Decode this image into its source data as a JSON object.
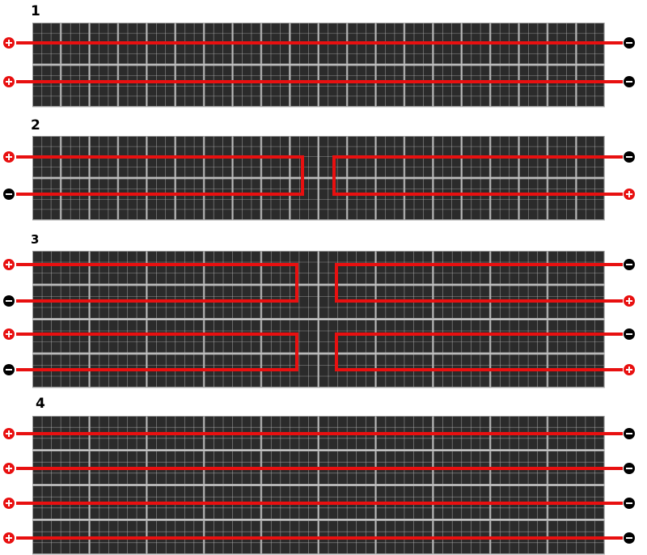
{
  "colors": {
    "wire": "#e81010",
    "module": "#2b2b2b",
    "grid": "#bdbdbd",
    "positive": "#e81010",
    "negative": "#000000"
  },
  "icons": {
    "positive": "circled-plus-icon",
    "negative": "circled-minus-icon"
  },
  "panels": [
    {
      "label": "1",
      "rows": 2,
      "modules_per_row": 20,
      "strings": [
        {
          "type": "straight",
          "left": "+",
          "right": "-"
        },
        {
          "type": "straight",
          "left": "+",
          "right": "-"
        }
      ]
    },
    {
      "label": "2",
      "rows": 2,
      "modules_per_row": 20,
      "strings": [
        {
          "type": "loop-left",
          "top": "+",
          "bottom": "-"
        },
        {
          "type": "loop-right",
          "top": "-",
          "bottom": "+"
        }
      ]
    },
    {
      "label": "3",
      "rows": 4,
      "modules_per_row": 10,
      "strings": [
        {
          "type": "loop-left",
          "top": "+",
          "bottom": "-"
        },
        {
          "type": "loop-right",
          "top": "-",
          "bottom": "+"
        },
        {
          "type": "loop-left",
          "top": "+",
          "bottom": "-"
        },
        {
          "type": "loop-right",
          "top": "-",
          "bottom": "+"
        }
      ]
    },
    {
      "label": "4",
      "rows": 4,
      "modules_per_row": 10,
      "strings": [
        {
          "type": "straight",
          "left": "+",
          "right": "-"
        },
        {
          "type": "straight",
          "left": "+",
          "right": "-"
        },
        {
          "type": "straight",
          "left": "+",
          "right": "-"
        },
        {
          "type": "straight",
          "left": "+",
          "right": "-"
        }
      ]
    }
  ]
}
